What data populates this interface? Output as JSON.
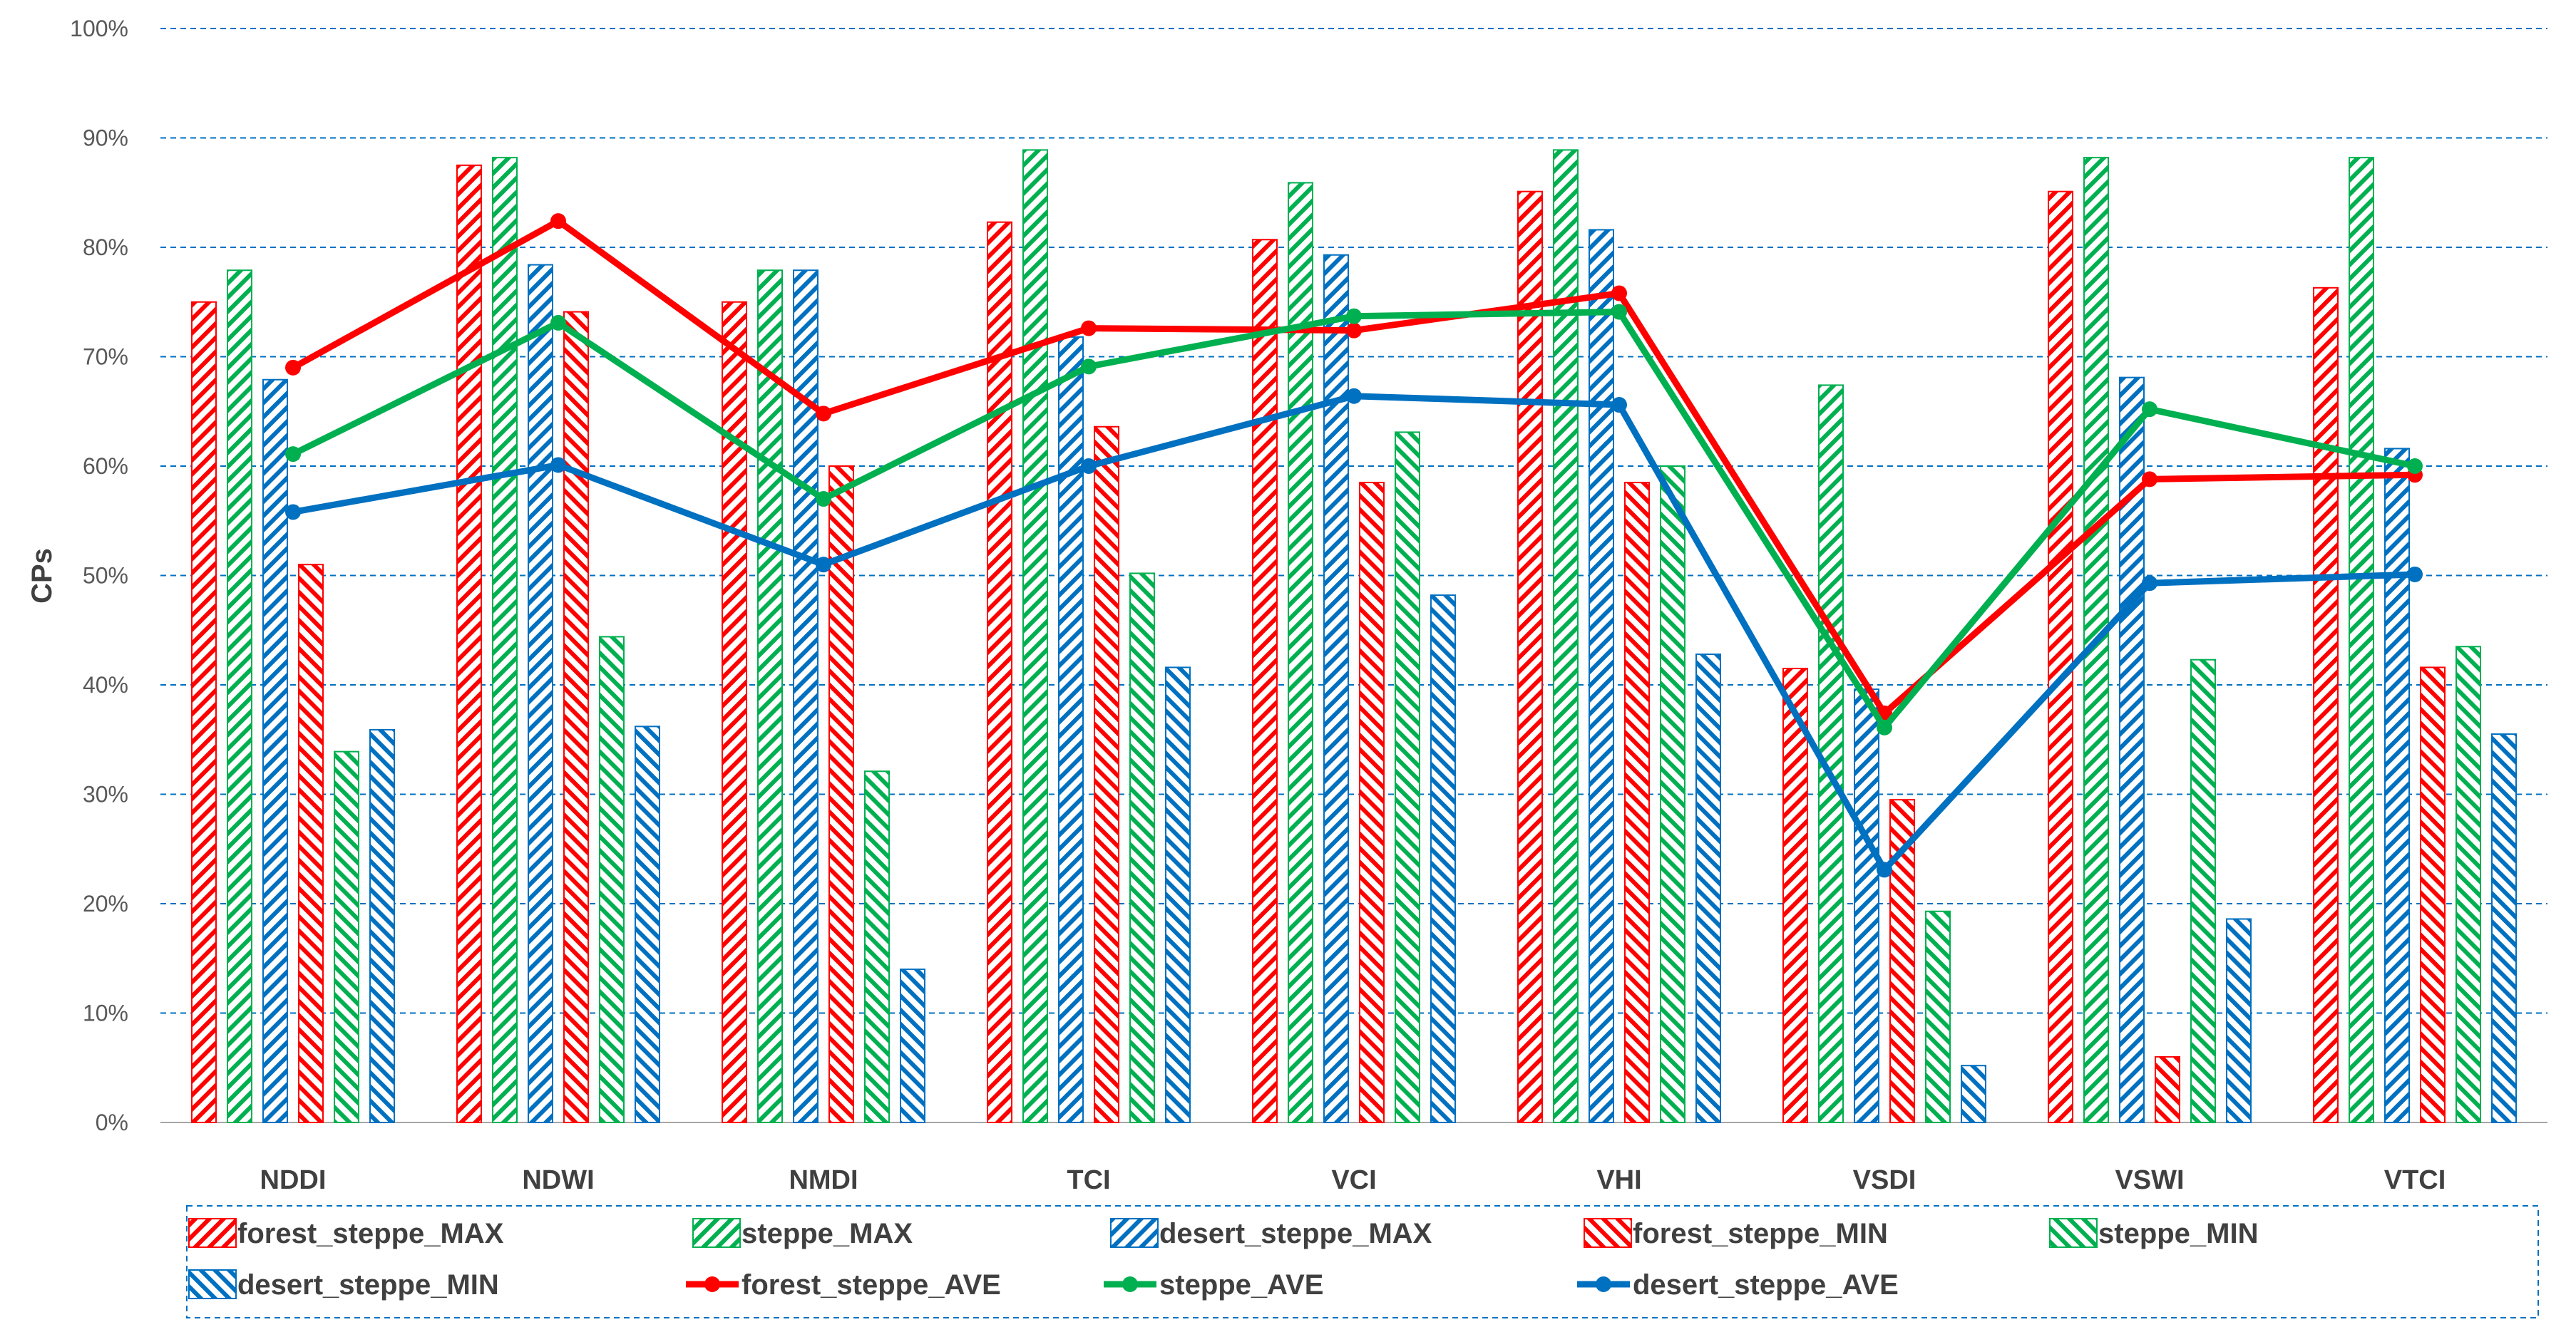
{
  "chart_data": {
    "type": "bar",
    "title": "",
    "xlabel": "",
    "ylabel": "CPs",
    "ylim": [
      0,
      100
    ],
    "ytick_step": 10,
    "ytick_suffix": "%",
    "grid": true,
    "legend_position": "bottom",
    "categories": [
      "NDDI",
      "NDWI",
      "NMDI",
      "TCI",
      "VCI",
      "VHI",
      "VSDI",
      "VSWI",
      "VTCI"
    ],
    "bar_series": [
      {
        "name": "forest_steppe_MAX",
        "color": "#ff0000",
        "hatch": "forward",
        "values": [
          75,
          87.5,
          75,
          82.3,
          80.7,
          85.1,
          41.5,
          85.1,
          76.3
        ]
      },
      {
        "name": "steppe_MAX",
        "color": "#00b050",
        "hatch": "forward",
        "values": [
          77.9,
          88.2,
          77.9,
          88.9,
          85.9,
          88.9,
          67.4,
          88.2,
          88.2
        ]
      },
      {
        "name": "desert_steppe_MAX",
        "color": "#0070c0",
        "hatch": "forward",
        "values": [
          67.9,
          78.4,
          77.9,
          71.8,
          79.3,
          81.6,
          39.6,
          68.1,
          61.6
        ]
      },
      {
        "name": "forest_steppe_MIN",
        "color": "#ff0000",
        "hatch": "backward",
        "values": [
          51,
          74.1,
          60,
          63.6,
          58.5,
          58.5,
          29.5,
          6,
          41.6
        ]
      },
      {
        "name": "steppe_MIN",
        "color": "#00b050",
        "hatch": "backward",
        "values": [
          33.9,
          44.4,
          32.1,
          50.2,
          63.1,
          60,
          19.3,
          42.3,
          43.5
        ]
      },
      {
        "name": "desert_steppe_MIN",
        "color": "#0070c0",
        "hatch": "backward",
        "values": [
          35.9,
          36.2,
          14,
          41.6,
          48.2,
          42.8,
          5.2,
          18.6,
          35.5
        ]
      }
    ],
    "line_series": [
      {
        "name": "forest_steppe_AVE",
        "color": "#ff0000",
        "values": [
          69,
          82.4,
          64.8,
          72.6,
          72.4,
          75.8,
          37.4,
          58.8,
          59.2
        ]
      },
      {
        "name": "steppe_AVE",
        "color": "#00b050",
        "values": [
          61.1,
          73.1,
          57,
          69.1,
          73.7,
          74.1,
          36.1,
          65.2,
          60
        ]
      },
      {
        "name": "desert_steppe_AVE",
        "color": "#0070c0",
        "values": [
          55.8,
          60.1,
          51,
          60,
          66.4,
          65.6,
          23.1,
          49.3,
          50.1
        ]
      }
    ],
    "legend_order": [
      "forest_steppe_MAX",
      "steppe_MAX",
      "desert_steppe_MAX",
      "forest_steppe_MIN",
      "steppe_MIN",
      "desert_steppe_MIN",
      "forest_steppe_AVE",
      "steppe_AVE",
      "desert_steppe_AVE"
    ]
  }
}
